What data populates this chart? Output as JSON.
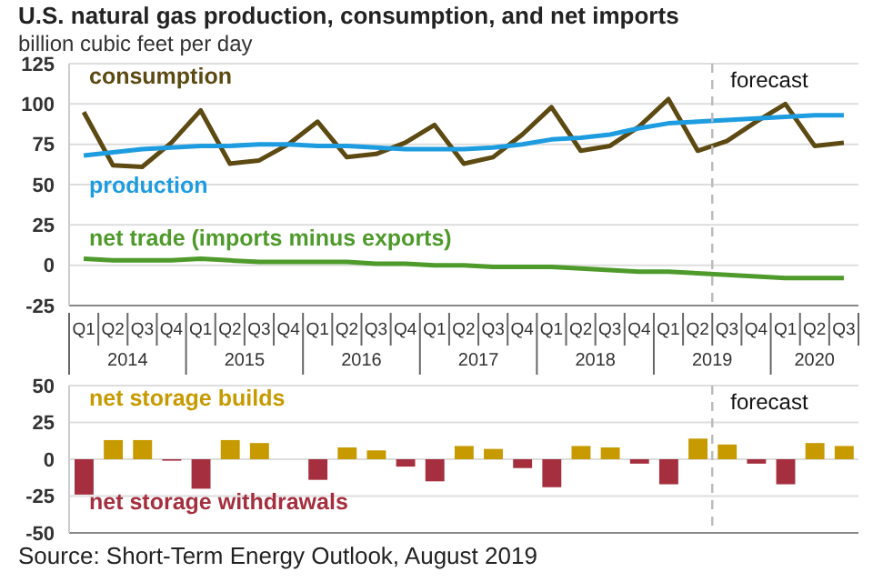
{
  "chart_data": [
    {
      "type": "line",
      "title": "U.S. natural gas production, consumption, and net imports",
      "subtitle": "billion cubic feet per day",
      "categories": [
        "Q1",
        "Q2",
        "Q3",
        "Q4",
        "Q1",
        "Q2",
        "Q3",
        "Q4",
        "Q1",
        "Q2",
        "Q3",
        "Q4",
        "Q1",
        "Q2",
        "Q3",
        "Q4",
        "Q1",
        "Q2",
        "Q3",
        "Q4",
        "Q1",
        "Q2",
        "Q3",
        "Q4",
        "Q1",
        "Q2",
        "Q3"
      ],
      "series": [
        {
          "name": "consumption",
          "color": "#5c4a12",
          "values": [
            95,
            62,
            61,
            76,
            96,
            63,
            65,
            75,
            89,
            67,
            69,
            76,
            87,
            63,
            67,
            81,
            98,
            71,
            74,
            86,
            103,
            71,
            77,
            89,
            100,
            74,
            76
          ]
        },
        {
          "name": "production",
          "color": "#1e9ce0",
          "values": [
            68,
            70,
            72,
            73,
            74,
            74,
            75,
            75,
            74,
            74,
            73,
            72,
            72,
            72,
            73,
            75,
            78,
            79,
            81,
            85,
            88,
            89,
            90,
            91,
            92,
            93,
            93
          ]
        },
        {
          "name": "net trade (imports minus exports)",
          "color": "#4e9a2a",
          "values": [
            4,
            3,
            3,
            3,
            4,
            3,
            2,
            2,
            2,
            2,
            1,
            1,
            0,
            0,
            -1,
            -1,
            -1,
            -2,
            -3,
            -4,
            -4,
            -5,
            -6,
            -7,
            -8,
            -8,
            -8
          ]
        }
      ],
      "ylim": [
        -25,
        125
      ],
      "yticks": [
        -25,
        0,
        25,
        50,
        75,
        100,
        125
      ],
      "grid": "y",
      "annotations": [
        "2014",
        "2015",
        "2016",
        "2017",
        "2018",
        "2019",
        "2020",
        "forecast"
      ]
    },
    {
      "type": "bar",
      "stacked": true,
      "tick_labels": "y",
      "categories": [
        null,
        null,
        null,
        null,
        null,
        null,
        null,
        null,
        null,
        null,
        null,
        null,
        null,
        null,
        null,
        null,
        null,
        null,
        null,
        null,
        null,
        null,
        null,
        null,
        null,
        null,
        null
      ],
      "series": [
        {
          "name": "net storage builds",
          "color": "#c79a00",
          "values": [
            null,
            13,
            13,
            null,
            null,
            13,
            11,
            0,
            null,
            8,
            6,
            null,
            null,
            9,
            7,
            null,
            null,
            9,
            8,
            null,
            null,
            14,
            10,
            null,
            null,
            11,
            9
          ]
        },
        {
          "name": "net storage withdrawals",
          "color": "#a52f3f",
          "values": [
            -24,
            null,
            null,
            -1,
            -20,
            null,
            null,
            null,
            -14,
            null,
            null,
            -5,
            -15,
            null,
            null,
            -6,
            -19,
            null,
            null,
            -3,
            -17,
            null,
            null,
            -3,
            -17,
            null,
            null
          ]
        }
      ],
      "ylim": [
        -50,
        50
      ],
      "yticks": [
        -50,
        -25,
        0,
        25,
        50
      ],
      "grid": "y",
      "annotations": [
        "forecast",
        "Source: Short-Term Energy Outlook, August 2019"
      ]
    }
  ]
}
